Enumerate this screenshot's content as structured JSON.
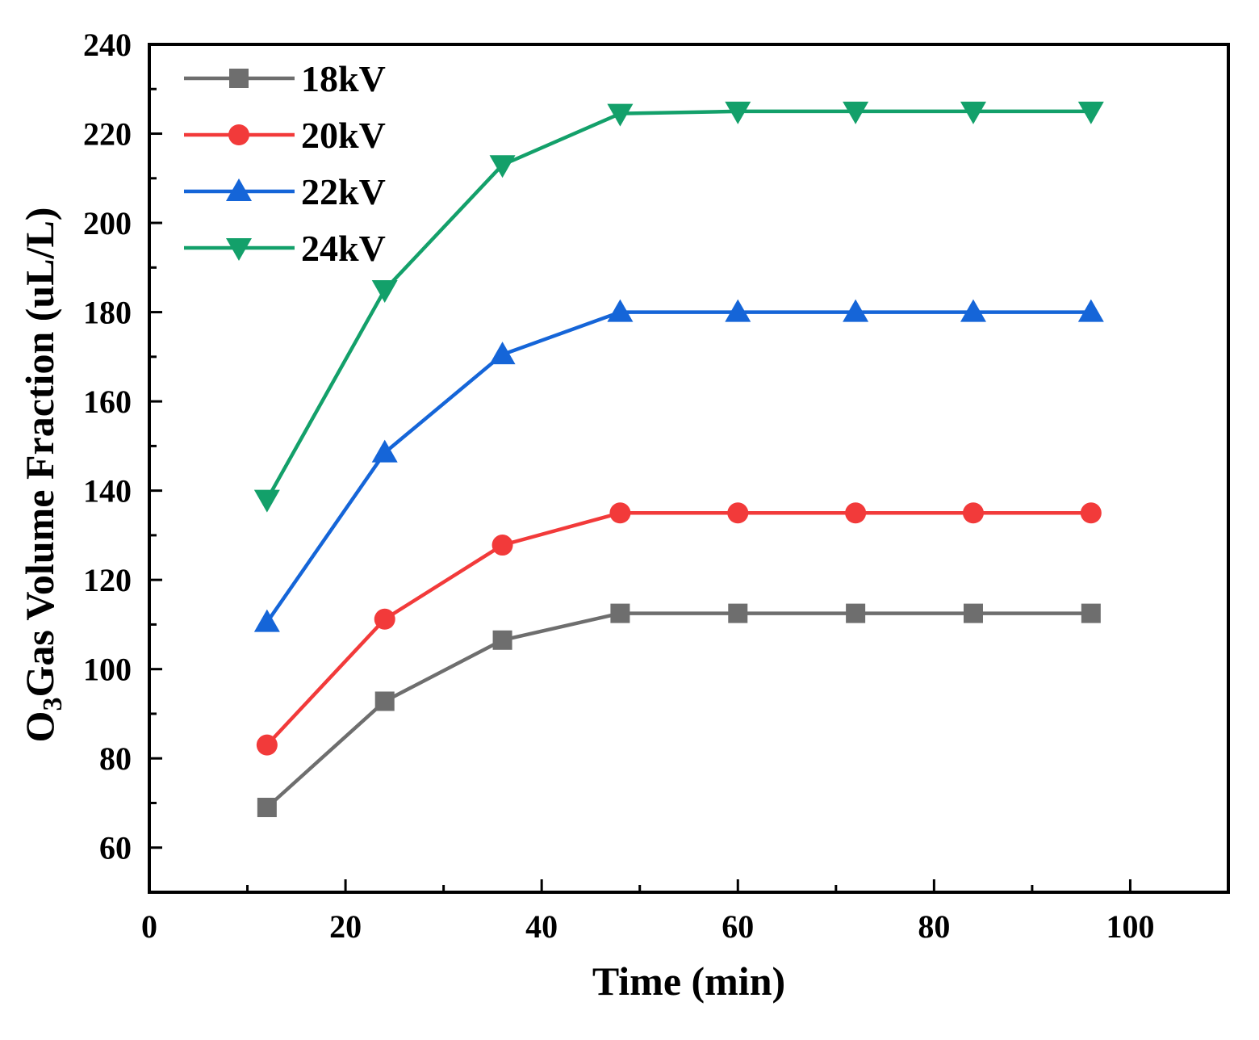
{
  "chart_data": {
    "type": "line",
    "title": "",
    "xlabel": "Time (min)",
    "ylabel": {
      "prefix": "O",
      "subscript": "3",
      "rest": "Gas Volume Fraction (uL/L)"
    },
    "xlim": [
      0,
      110
    ],
    "ylim": [
      50,
      240
    ],
    "x_ticks": [
      0,
      20,
      40,
      60,
      80,
      100
    ],
    "x_tick_labels": [
      "0",
      "20",
      "40",
      "60",
      "80",
      "100"
    ],
    "x_minor_ticks": [
      10,
      30,
      50,
      70,
      90,
      110
    ],
    "y_ticks": [
      60,
      80,
      100,
      120,
      140,
      160,
      180,
      200,
      220,
      240
    ],
    "y_tick_labels": [
      "60",
      "80",
      "100",
      "120",
      "140",
      "160",
      "180",
      "200",
      "220",
      "240"
    ],
    "y_minor_ticks": [
      50,
      70,
      90,
      110,
      130,
      150,
      170,
      190,
      210,
      230
    ],
    "grid": false,
    "legend_position": "top-left",
    "x": [
      12,
      24,
      36,
      48,
      60,
      72,
      84,
      96
    ],
    "series": [
      {
        "name": "18kV",
        "color": "#6e6e6e",
        "marker": "square",
        "values": [
          69,
          92.8,
          106.5,
          112.5,
          112.5,
          112.5,
          112.5,
          112.5
        ]
      },
      {
        "name": "20kV",
        "color": "#f23a3a",
        "marker": "circle",
        "values": [
          83,
          111.2,
          127.8,
          135,
          135,
          135,
          135,
          135
        ]
      },
      {
        "name": "22kV",
        "color": "#1565d8",
        "marker": "triangle-up",
        "values": [
          110.5,
          148.5,
          170.5,
          180,
          180,
          180,
          180,
          180
        ]
      },
      {
        "name": "24kV",
        "color": "#13a06a",
        "marker": "triangle-down",
        "values": [
          138,
          185,
          213,
          224.5,
          225,
          225,
          225,
          225
        ]
      }
    ]
  }
}
